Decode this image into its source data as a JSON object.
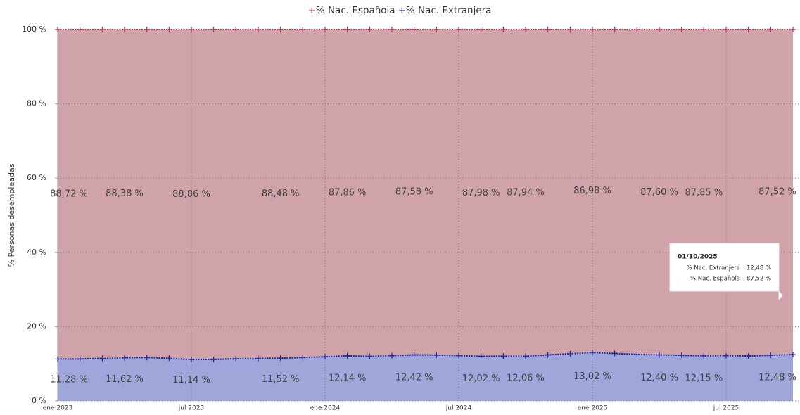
{
  "chart_data": {
    "type": "stacked_area",
    "y_label": "% Personas desempleadas",
    "categories": [
      "ene 2023",
      null,
      null,
      null,
      null,
      null,
      "jul 2023",
      null,
      null,
      null,
      null,
      null,
      "ene 2024",
      null,
      null,
      null,
      null,
      null,
      "jul 2024",
      null,
      null,
      null,
      null,
      null,
      "ene 2025",
      null,
      null,
      null,
      null,
      null,
      "jul 2025",
      null,
      null,
      null
    ],
    "series": [
      {
        "name": "% Nac. Española",
        "color": "#b0354f",
        "fill": "#d0a3ab",
        "values": [
          88.72,
          88.7,
          88.55,
          88.38,
          88.3,
          88.5,
          88.86,
          88.8,
          88.65,
          88.55,
          88.48,
          88.3,
          88.1,
          87.86,
          88.0,
          87.8,
          87.58,
          87.65,
          87.8,
          87.98,
          87.95,
          87.94,
          87.6,
          87.3,
          86.98,
          87.2,
          87.5,
          87.6,
          87.7,
          87.85,
          87.8,
          87.9,
          87.7,
          87.52
        ],
        "value_labels": [
          "88,72 %",
          null,
          null,
          "88,38 %",
          null,
          null,
          "88,86 %",
          null,
          null,
          null,
          "88,48 %",
          null,
          null,
          "87,86 %",
          null,
          null,
          "87,58 %",
          null,
          null,
          "87,98 %",
          null,
          "87,94 %",
          null,
          null,
          "86,98 %",
          null,
          null,
          "87,60 %",
          null,
          "87,85 %",
          null,
          null,
          null,
          "87,52 %"
        ]
      },
      {
        "name": "% Nac. Extranjera",
        "color": "#1c2a9c",
        "fill": "#9fa6da",
        "values": [
          11.28,
          11.3,
          11.45,
          11.62,
          11.7,
          11.5,
          11.14,
          11.2,
          11.35,
          11.45,
          11.52,
          11.7,
          11.9,
          12.14,
          12.0,
          12.2,
          12.42,
          12.35,
          12.2,
          12.02,
          12.05,
          12.06,
          12.4,
          12.7,
          13.02,
          12.8,
          12.5,
          12.4,
          12.3,
          12.15,
          12.2,
          12.1,
          12.3,
          12.48
        ],
        "value_labels": [
          "11,28 %",
          null,
          null,
          "11,62 %",
          null,
          null,
          "11,14 %",
          null,
          null,
          null,
          "11,52 %",
          null,
          null,
          "12,14 %",
          null,
          null,
          "12,42 %",
          null,
          null,
          "12,02 %",
          null,
          "12,06 %",
          null,
          null,
          "13,02 %",
          null,
          null,
          "12,40 %",
          null,
          "12,15 %",
          null,
          null,
          null,
          "12,48 %"
        ]
      }
    ],
    "stack_order": [
      1,
      0
    ],
    "ylim": [
      0,
      100
    ],
    "yticks": [
      {
        "value": 0,
        "label": "0 %"
      },
      {
        "value": 20,
        "label": "20 %"
      },
      {
        "value": 40,
        "label": "40 %"
      },
      {
        "value": 60,
        "label": "60 %"
      },
      {
        "value": 80,
        "label": "80 %"
      },
      {
        "value": 100,
        "label": "100 %"
      }
    ],
    "grid": true,
    "tooltip": {
      "date": "01/10/2025",
      "index": 33
    }
  }
}
